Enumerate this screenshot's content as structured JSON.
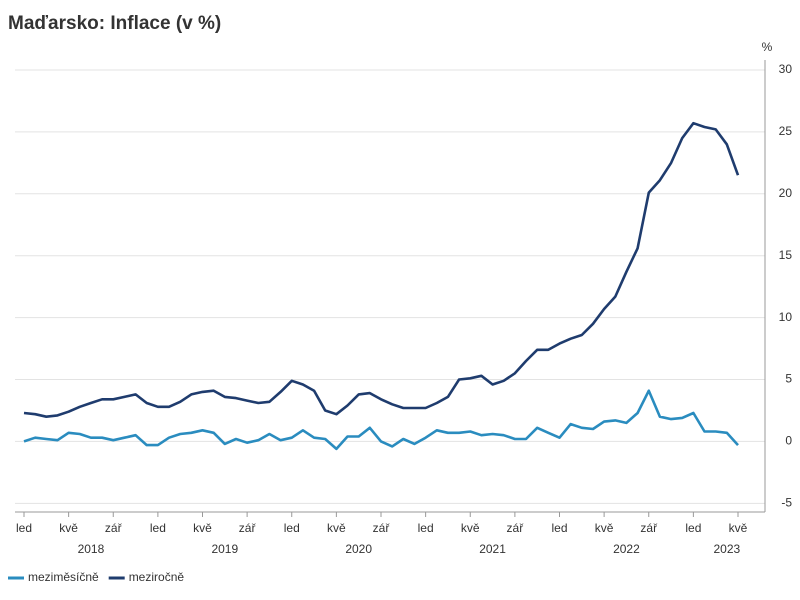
{
  "chart_data": {
    "type": "line",
    "title": "Maďarsko: Inflace (v %)",
    "y_unit": "%",
    "categories": [
      "led",
      null,
      null,
      null,
      "kvě",
      null,
      null,
      null,
      "zář",
      null,
      null,
      null,
      "led",
      null,
      null,
      null,
      "kvě",
      null,
      null,
      null,
      "zář",
      null,
      null,
      null,
      "led",
      null,
      null,
      null,
      "kvě",
      null,
      null,
      null,
      "zář",
      null,
      null,
      null,
      "led",
      null,
      null,
      null,
      "kvě",
      null,
      null,
      null,
      "zář",
      null,
      null,
      null,
      "led",
      null,
      null,
      null,
      "kvě",
      null,
      null,
      null,
      "zář",
      null,
      null,
      null,
      "led",
      null,
      null,
      null,
      "kvě"
    ],
    "x_groups": [
      "2018",
      "2019",
      "2020",
      "2021",
      "2022",
      "2023"
    ],
    "series": [
      {
        "name": "meziměsíčně",
        "color": "#2a8cbf",
        "values": [
          0.0,
          0.3,
          0.2,
          0.1,
          0.7,
          0.6,
          0.3,
          0.3,
          0.1,
          0.3,
          0.5,
          -0.3,
          -0.3,
          0.3,
          0.6,
          0.7,
          0.9,
          0.7,
          -0.2,
          0.2,
          -0.1,
          0.1,
          0.6,
          0.1,
          0.3,
          0.9,
          0.3,
          0.2,
          -0.6,
          0.4,
          0.4,
          1.1,
          0.0,
          -0.4,
          0.2,
          -0.2,
          0.3,
          0.9,
          0.7,
          0.7,
          0.8,
          0.5,
          0.6,
          0.5,
          0.2,
          0.2,
          1.1,
          0.7,
          0.3,
          1.4,
          1.1,
          1.0,
          1.6,
          1.7,
          1.5,
          2.3,
          4.1,
          2.0,
          1.8,
          1.9,
          2.3,
          0.8,
          0.8,
          0.7,
          -0.3
        ]
      },
      {
        "name": "meziročně",
        "color": "#1f3c6e",
        "values": [
          2.3,
          2.2,
          2.0,
          2.1,
          2.4,
          2.8,
          3.1,
          3.4,
          3.4,
          3.6,
          3.8,
          3.1,
          2.8,
          2.8,
          3.2,
          3.8,
          4.0,
          4.1,
          3.6,
          3.5,
          3.3,
          3.1,
          3.2,
          4.0,
          4.9,
          4.6,
          4.1,
          2.5,
          2.2,
          2.9,
          3.8,
          3.9,
          3.4,
          3.0,
          2.7,
          2.7,
          2.7,
          3.1,
          3.6,
          5.0,
          5.1,
          5.3,
          4.6,
          4.9,
          5.5,
          6.5,
          7.4,
          7.4,
          7.9,
          8.3,
          8.6,
          9.5,
          10.7,
          11.7,
          13.7,
          15.6,
          20.1,
          21.1,
          22.5,
          24.5,
          25.7,
          25.4,
          25.2,
          24.0,
          21.5
        ]
      }
    ],
    "ylim": [
      -5.7,
      30
    ],
    "yticks": [
      -5,
      0,
      5,
      10,
      15,
      20,
      25,
      30
    ],
    "grid": true,
    "legend": "bottom-left"
  }
}
